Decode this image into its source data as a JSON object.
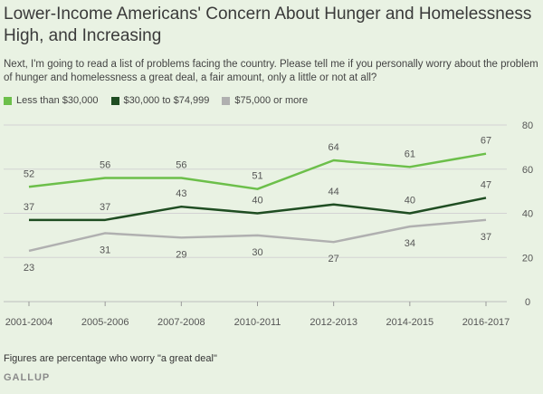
{
  "title": "Lower-Income Americans' Concern About Hunger and Homelessness High, and Increasing",
  "subtitle": "Next, I'm going to read a list of problems facing the country. Please tell me if you personally worry about the problem of hunger and homelessness a great deal, a fair amount, only a little or not at all?",
  "footnote": "Figures are percentage who worry \"a great deal\"",
  "source": "GALLUP",
  "chart_data": {
    "type": "line",
    "categories": [
      "2001-2004",
      "2005-2006",
      "2007-2008",
      "2010-2011",
      "2012-2013",
      "2014-2015",
      "2016-2017"
    ],
    "ylim": [
      0,
      80
    ],
    "yticks": [
      0,
      20,
      40,
      60,
      80
    ],
    "grid": true,
    "legend_position": "top-left",
    "series": [
      {
        "name": "Less than $30,000",
        "color": "#6cbf4a",
        "values": [
          52,
          56,
          56,
          51,
          64,
          61,
          67
        ]
      },
      {
        "name": "$30,000 to $74,999",
        "color": "#1f4d22",
        "values": [
          37,
          37,
          43,
          40,
          44,
          40,
          47
        ]
      },
      {
        "name": "$75,000 or more",
        "color": "#b0b0b0",
        "values": [
          23,
          31,
          29,
          30,
          27,
          34,
          37
        ]
      }
    ]
  }
}
